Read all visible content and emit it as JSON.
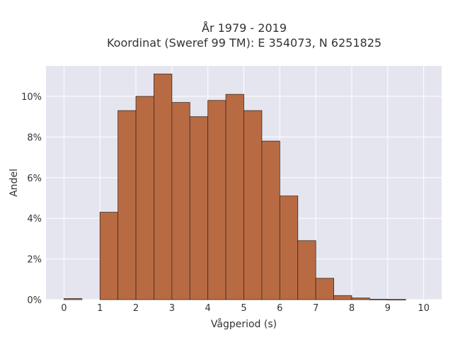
{
  "chart_data": {
    "type": "bar",
    "title_line1": "År 1979 - 2019",
    "title_line2": "Koordinat (Sweref 99 TM): E 354073, N 6251825",
    "xlabel": "Vågperiod (s)",
    "ylabel": "Andel",
    "bin_width": 0.5,
    "bin_starts": [
      0,
      0.5,
      1,
      1.5,
      2,
      2.5,
      3,
      3.5,
      4,
      4.5,
      5,
      5.5,
      6,
      6.5,
      7,
      7.5,
      8,
      8.5,
      9,
      9.5
    ],
    "values": [
      0.05,
      0,
      4.3,
      9.3,
      10.0,
      11.1,
      9.7,
      9.0,
      9.8,
      10.1,
      9.3,
      7.8,
      5.1,
      2.9,
      1.05,
      0.2,
      0.08,
      0.02,
      0.01,
      0
    ],
    "xlim": [
      -0.5,
      10.5
    ],
    "ylim": [
      0,
      11.5
    ],
    "x_ticks": [
      "0",
      "1",
      "2",
      "3",
      "4",
      "5",
      "6",
      "7",
      "8",
      "9",
      "10"
    ],
    "y_ticks": [
      "0%",
      "2%",
      "4%",
      "6%",
      "8%",
      "10%"
    ],
    "y_tick_values": [
      0,
      2,
      4,
      6,
      8,
      10
    ],
    "bar_color": "#b86b43",
    "plot_background": "#e5e5ef",
    "grid": true,
    "legend": false
  }
}
